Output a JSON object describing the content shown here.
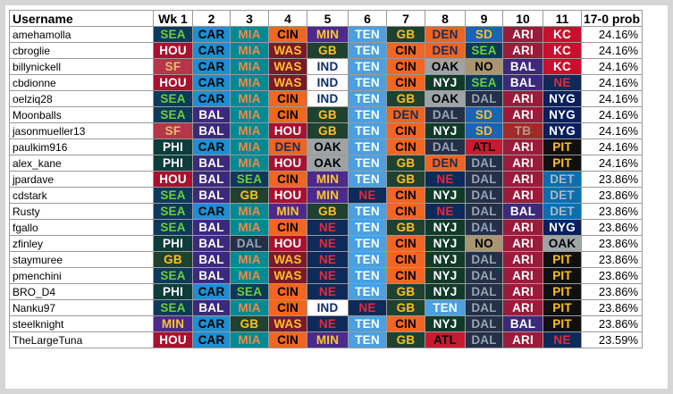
{
  "headers": [
    "Username",
    "Wk 1",
    "2",
    "3",
    "4",
    "5",
    "6",
    "7",
    "8",
    "9",
    "10",
    "11",
    "17-0 prob"
  ],
  "team_colors": {
    "SEA": {
      "bg": "#0d3a5a",
      "fg": "#6fce3a"
    },
    "HOU": {
      "bg": "#a8112f",
      "fg": "#ffffff"
    },
    "SF": {
      "bg": "#b43648",
      "fg": "#e0c070"
    },
    "PHI": {
      "bg": "#0d3d3a",
      "fg": "#ffffff"
    },
    "MIN": {
      "bg": "#4b2a8c",
      "fg": "#ffc62f"
    },
    "GB": {
      "bg": "#1f4130",
      "fg": "#ffc020"
    },
    "CAR": {
      "bg": "#1d8fd3",
      "fg": "#000000"
    },
    "BAL": {
      "bg": "#3b2a7a",
      "fg": "#ffffff"
    },
    "DAL": {
      "bg": "#233048",
      "fg": "#9aa4b2"
    },
    "MIA": {
      "bg": "#008a94",
      "fg": "#f08a48"
    },
    "WAS": {
      "bg": "#7a1a2a",
      "fg": "#ffc030"
    },
    "CIN": {
      "bg": "#f26522",
      "fg": "#000000"
    },
    "DEN": {
      "bg": "#ee6420",
      "fg": "#1b2b55"
    },
    "IND": {
      "bg": "#ffffff",
      "fg": "#0c2a66"
    },
    "OAK": {
      "bg": "#9ea3a6",
      "fg": "#000000"
    },
    "NE": {
      "bg": "#0e2a58",
      "fg": "#e8283c"
    },
    "TEN": {
      "bg": "#4aa0e0",
      "fg": "#ffffff"
    },
    "NYJ": {
      "bg": "#113a2a",
      "fg": "#ffffff"
    },
    "ATL": {
      "bg": "#c81a30",
      "fg": "#000000"
    },
    "SD": {
      "bg": "#1a64b4",
      "fg": "#ffc020"
    },
    "NO": {
      "bg": "#a89670",
      "fg": "#000000"
    },
    "ARI": {
      "bg": "#9b1b3a",
      "fg": "#ffffff"
    },
    "TB": {
      "bg": "#a02b28",
      "fg": "#a8a090"
    },
    "KC": {
      "bg": "#c8102e",
      "fg": "#ffffff"
    },
    "NYG": {
      "bg": "#0b1f5c",
      "fg": "#ffffff"
    },
    "PIT": {
      "bg": "#101010",
      "fg": "#ffc020"
    },
    "DET": {
      "bg": "#0a6eb0",
      "fg": "#b0b7bc"
    }
  },
  "rows": [
    {
      "user": "amehamolla",
      "picks": [
        "SEA",
        "CAR",
        "MIA",
        "CIN",
        "MIN",
        "TEN",
        "GB",
        "DEN",
        "SD",
        "ARI",
        "KC"
      ],
      "prob": "24.16%"
    },
    {
      "user": "cbroglie",
      "picks": [
        "HOU",
        "CAR",
        "MIA",
        "WAS",
        "GB",
        "TEN",
        "CIN",
        "DEN",
        "SEA",
        "ARI",
        "KC"
      ],
      "prob": "24.16%"
    },
    {
      "user": "billynickell",
      "picks": [
        "SF",
        "CAR",
        "MIA",
        "WAS",
        "IND",
        "TEN",
        "CIN",
        "OAK",
        "NO",
        "BAL",
        "KC"
      ],
      "prob": "24.16%"
    },
    {
      "user": "cbdionne",
      "picks": [
        "HOU",
        "CAR",
        "MIA",
        "WAS",
        "IND",
        "TEN",
        "CIN",
        "NYJ",
        "SEA",
        "BAL",
        "NE"
      ],
      "prob": "24.16%"
    },
    {
      "user": "oelziq28",
      "picks": [
        "SEA",
        "CAR",
        "MIA",
        "CIN",
        "IND",
        "TEN",
        "GB",
        "OAK",
        "DAL",
        "ARI",
        "NYG"
      ],
      "prob": "24.16%"
    },
    {
      "user": "Moonballs",
      "picks": [
        "SEA",
        "BAL",
        "MIA",
        "CIN",
        "GB",
        "TEN",
        "DEN",
        "DAL",
        "SD",
        "ARI",
        "NYG"
      ],
      "prob": "24.16%"
    },
    {
      "user": "jasonmueller13",
      "picks": [
        "SF",
        "BAL",
        "MIA",
        "HOU",
        "GB",
        "TEN",
        "CIN",
        "NYJ",
        "SD",
        "TB",
        "NYG"
      ],
      "prob": "24.16%"
    },
    {
      "user": "paulkim916",
      "picks": [
        "PHI",
        "CAR",
        "MIA",
        "DEN",
        "OAK",
        "TEN",
        "CIN",
        "DAL",
        "ATL",
        "ARI",
        "PIT"
      ],
      "prob": "24.16%"
    },
    {
      "user": "alex_kane",
      "picks": [
        "PHI",
        "BAL",
        "MIA",
        "HOU",
        "OAK",
        "TEN",
        "GB",
        "DEN",
        "DAL",
        "ARI",
        "PIT"
      ],
      "prob": "24.16%"
    },
    {
      "user": "jpardave",
      "picks": [
        "HOU",
        "BAL",
        "SEA",
        "CIN",
        "MIN",
        "TEN",
        "GB",
        "NE",
        "DAL",
        "ARI",
        "DET"
      ],
      "prob": "23.86%"
    },
    {
      "user": "cdstark",
      "picks": [
        "SEA",
        "BAL",
        "GB",
        "HOU",
        "MIN",
        "NE",
        "CIN",
        "NYJ",
        "DAL",
        "ARI",
        "DET"
      ],
      "prob": "23.86%"
    },
    {
      "user": "Rusty",
      "picks": [
        "SEA",
        "CAR",
        "MIA",
        "MIN",
        "GB",
        "TEN",
        "CIN",
        "NE",
        "DAL",
        "BAL",
        "DET"
      ],
      "prob": "23.86%"
    },
    {
      "user": "fgallo",
      "picks": [
        "SEA",
        "BAL",
        "MIA",
        "CIN",
        "NE",
        "TEN",
        "GB",
        "NYJ",
        "DAL",
        "ARI",
        "NYG"
      ],
      "prob": "23.86%"
    },
    {
      "user": "zfinley",
      "picks": [
        "PHI",
        "BAL",
        "DAL",
        "HOU",
        "NE",
        "TEN",
        "CIN",
        "NYJ",
        "NO",
        "ARI",
        "OAK"
      ],
      "prob": "23.86%"
    },
    {
      "user": "staymuree",
      "picks": [
        "GB",
        "BAL",
        "MIA",
        "WAS",
        "NE",
        "TEN",
        "CIN",
        "NYJ",
        "DAL",
        "ARI",
        "PIT"
      ],
      "prob": "23.86%"
    },
    {
      "user": "pmenchini",
      "picks": [
        "SEA",
        "BAL",
        "MIA",
        "WAS",
        "NE",
        "TEN",
        "CIN",
        "NYJ",
        "DAL",
        "ARI",
        "PIT"
      ],
      "prob": "23.86%"
    },
    {
      "user": "BRO_D4",
      "picks": [
        "PHI",
        "CAR",
        "SEA",
        "CIN",
        "NE",
        "TEN",
        "GB",
        "NYJ",
        "DAL",
        "ARI",
        "PIT"
      ],
      "prob": "23.86%"
    },
    {
      "user": "Nanku97",
      "picks": [
        "SEA",
        "BAL",
        "MIA",
        "CIN",
        "IND",
        "NE",
        "GB",
        "TEN",
        "DAL",
        "ARI",
        "PIT"
      ],
      "prob": "23.86%"
    },
    {
      "user": "steelknight",
      "picks": [
        "MIN",
        "CAR",
        "GB",
        "WAS",
        "NE",
        "TEN",
        "CIN",
        "NYJ",
        "DAL",
        "BAL",
        "PIT"
      ],
      "prob": "23.86%"
    },
    {
      "user": "TheLargeTuna",
      "picks": [
        "HOU",
        "CAR",
        "MIA",
        "CIN",
        "MIN",
        "TEN",
        "GB",
        "ATL",
        "DAL",
        "ARI",
        "NE"
      ],
      "prob": "23.59%"
    }
  ]
}
